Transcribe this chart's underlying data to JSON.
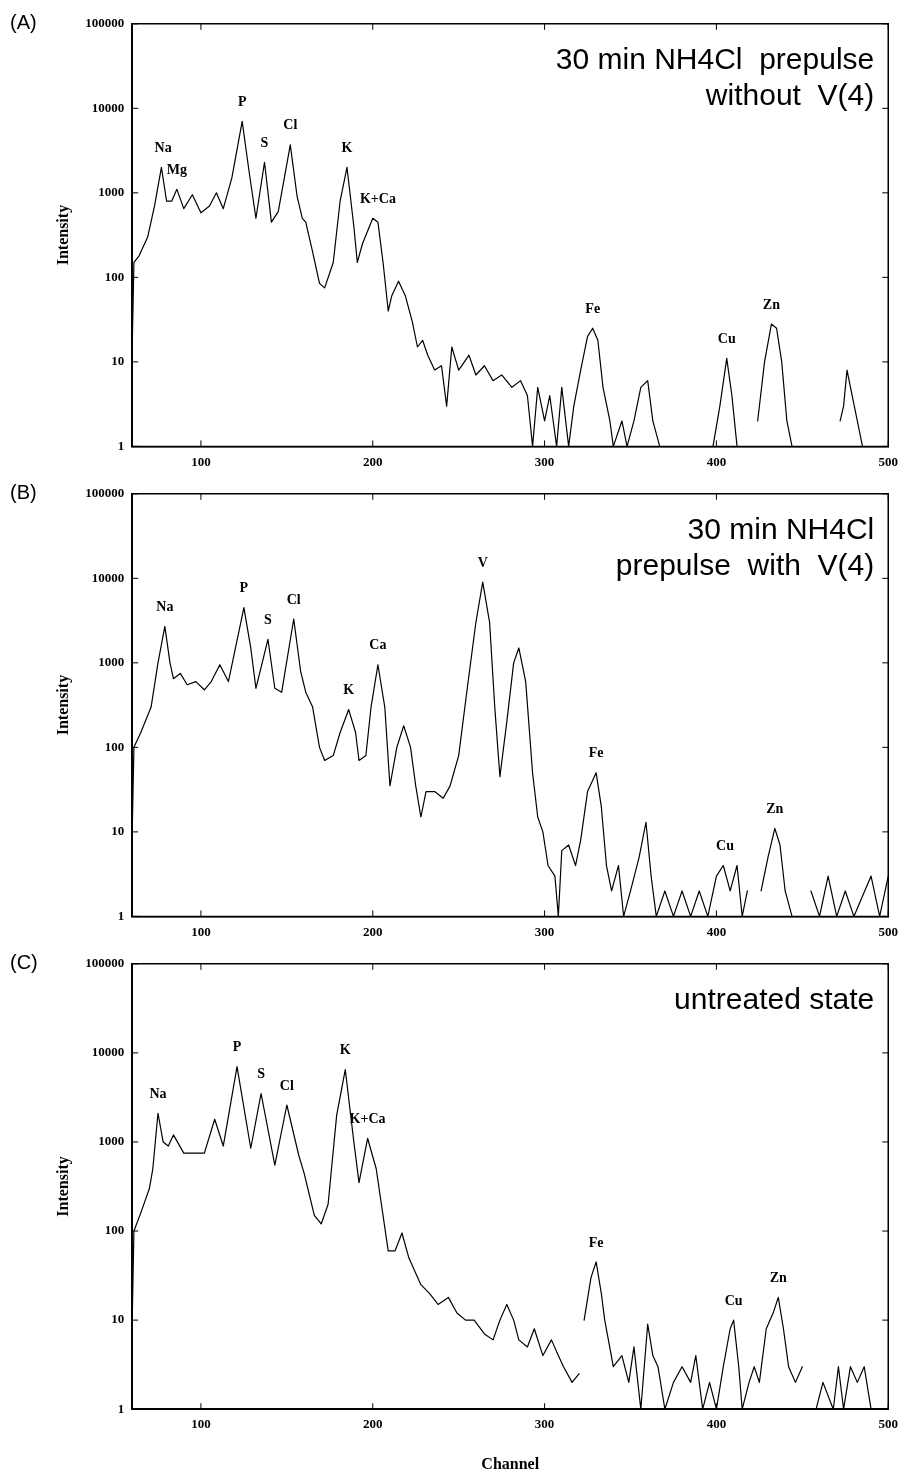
{
  "chart_data": [
    {
      "type": "line",
      "title": "(A)",
      "subtitle": "30 min NH4Cl  prepulse\nwithout  V(4)",
      "ylabel": "Intensity",
      "log": "y",
      "grid": false,
      "marker": "none",
      "line_style": "solid",
      "xlim": [
        60,
        500
      ],
      "xticks": [
        100,
        200,
        300,
        400,
        500
      ],
      "ylim": [
        1,
        100000
      ],
      "yticks": [
        1,
        10,
        100,
        1000,
        10000,
        100000
      ],
      "x": [
        60,
        61,
        64,
        69,
        73,
        77,
        80,
        83,
        86,
        90,
        95,
        100,
        105,
        109,
        113,
        118,
        124,
        128,
        132,
        137,
        141,
        145,
        152,
        156,
        159,
        161,
        165,
        169,
        172,
        177,
        181,
        185,
        189,
        191,
        194,
        200,
        203,
        206,
        209,
        211,
        215,
        219,
        223,
        226,
        229,
        232,
        236,
        240,
        243,
        246,
        250,
        256,
        260,
        265,
        270,
        275,
        281,
        286,
        290,
        293,
        296,
        300,
        303,
        307,
        310,
        314,
        317,
        321,
        325,
        328,
        331,
        334,
        338,
        340,
        345,
        348,
        352,
        356,
        360,
        363,
        367,
        370,
        398,
        402,
        406,
        409,
        412,
        416,
        424,
        428,
        432,
        435,
        438,
        441,
        444,
        447,
        472,
        474,
        476,
        479,
        482,
        485
      ],
      "series": [
        {
          "color": "#000000",
          "values": [
            15,
            150,
            180,
            300,
            700,
            2000,
            800,
            800,
            1100,
            650,
            950,
            580,
            700,
            1000,
            650,
            1500,
            7000,
            1800,
            500,
            2300,
            450,
            600,
            3700,
            900,
            500,
            450,
            200,
            85,
            75,
            150,
            800,
            2000,
            400,
            150,
            250,
            500,
            450,
            150,
            40,
            60,
            90,
            60,
            30,
            15,
            18,
            12,
            8,
            9,
            3,
            15,
            8,
            12,
            7,
            9,
            6,
            7,
            5,
            6,
            4,
            1,
            5,
            2,
            4,
            1,
            5,
            1,
            3,
            8,
            20,
            25,
            18,
            5,
            2,
            1,
            2,
            1,
            2,
            5,
            6,
            2,
            1,
            null,
            1,
            3,
            11,
            4,
            1,
            null,
            2,
            10,
            28,
            25,
            10,
            2,
            1,
            null,
            2,
            3,
            8,
            4,
            2,
            1
          ]
        }
      ],
      "annotations": [
        {
          "text": "Na",
          "x": 78,
          "y": 2000
        },
        {
          "text": "Mg",
          "x": 86,
          "y": 1100
        },
        {
          "text": "P",
          "x": 124,
          "y": 7000
        },
        {
          "text": "S",
          "x": 137,
          "y": 2300
        },
        {
          "text": "Cl",
          "x": 152,
          "y": 3700
        },
        {
          "text": "K",
          "x": 185,
          "y": 2000
        },
        {
          "text": "K+Ca",
          "x": 203,
          "y": 500
        },
        {
          "text": "Fe",
          "x": 328,
          "y": 25
        },
        {
          "text": "Cu",
          "x": 406,
          "y": 11
        },
        {
          "text": "Zn",
          "x": 432,
          "y": 28
        }
      ]
    },
    {
      "type": "line",
      "title": "(B)",
      "subtitle": "30 min NH4Cl\nprepulse  with  V(4)",
      "ylabel": "Intensity",
      "log": "y",
      "grid": false,
      "marker": "none",
      "line_style": "solid",
      "xlim": [
        60,
        500
      ],
      "xticks": [
        100,
        200,
        300,
        400,
        500
      ],
      "ylim": [
        1,
        100000
      ],
      "yticks": [
        1,
        10,
        100,
        1000,
        10000,
        100000
      ],
      "x": [
        60,
        61,
        65,
        71,
        75,
        79,
        82,
        84,
        88,
        92,
        97,
        102,
        106,
        111,
        116,
        125,
        129,
        132,
        139,
        143,
        147,
        154,
        158,
        161,
        165,
        169,
        172,
        177,
        181,
        186,
        190,
        192,
        196,
        199,
        203,
        207,
        210,
        214,
        218,
        222,
        225,
        228,
        231,
        236,
        241,
        245,
        250,
        255,
        260,
        264,
        268,
        271,
        274,
        278,
        282,
        285,
        289,
        293,
        296,
        299,
        302,
        306,
        308,
        310,
        314,
        318,
        321,
        325,
        330,
        333,
        336,
        339,
        343,
        346,
        350,
        355,
        359,
        362,
        365,
        370,
        375,
        380,
        385,
        390,
        395,
        400,
        404,
        408,
        412,
        415,
        418,
        421,
        426,
        430,
        434,
        437,
        440,
        444,
        447,
        455,
        460,
        465,
        470,
        475,
        480,
        490,
        495,
        500
      ],
      "series": [
        {
          "color": "#000000",
          "values": [
            10,
            100,
            150,
            300,
            1000,
            2700,
            1000,
            650,
            750,
            550,
            600,
            480,
            600,
            950,
            600,
            4500,
            1500,
            500,
            1900,
            500,
            450,
            3300,
            800,
            450,
            300,
            100,
            70,
            80,
            150,
            280,
            150,
            70,
            80,
            300,
            950,
            300,
            35,
            100,
            180,
            100,
            35,
            15,
            30,
            30,
            25,
            35,
            80,
            500,
            3000,
            9000,
            3000,
            300,
            45,
            200,
            1000,
            1500,
            600,
            50,
            15,
            10,
            4,
            3,
            1,
            6,
            7,
            4,
            8,
            30,
            50,
            20,
            4,
            2,
            4,
            1,
            2,
            5,
            13,
            3,
            1,
            2,
            1,
            2,
            1,
            2,
            1,
            3,
            4,
            2,
            4,
            1,
            2,
            null,
            2,
            5,
            11,
            7,
            2,
            1,
            null,
            2,
            1,
            3,
            1,
            2,
            1,
            3,
            1,
            3
          ]
        }
      ],
      "annotations": [
        {
          "text": "Na",
          "x": 79,
          "y": 2700
        },
        {
          "text": "P",
          "x": 125,
          "y": 4500
        },
        {
          "text": "S",
          "x": 139,
          "y": 1900
        },
        {
          "text": "Cl",
          "x": 154,
          "y": 3300
        },
        {
          "text": "K",
          "x": 186,
          "y": 280
        },
        {
          "text": "Ca",
          "x": 203,
          "y": 950
        },
        {
          "text": "V",
          "x": 264,
          "y": 9000
        },
        {
          "text": "Fe",
          "x": 330,
          "y": 50
        },
        {
          "text": "Cu",
          "x": 405,
          "y": 4
        },
        {
          "text": "Zn",
          "x": 434,
          "y": 11
        }
      ]
    },
    {
      "type": "line",
      "title": "(C)",
      "subtitle": "untreated state",
      "xlabel": "Channel",
      "ylabel": "Intensity",
      "log": "y",
      "grid": false,
      "marker": "none",
      "line_style": "solid",
      "xlim": [
        60,
        500
      ],
      "xticks": [
        100,
        200,
        300,
        400,
        500
      ],
      "ylim": [
        1,
        100000
      ],
      "yticks": [
        1,
        10,
        100,
        1000,
        10000,
        100000
      ],
      "x": [
        60,
        61,
        65,
        70,
        72,
        75,
        78,
        81,
        84,
        90,
        95,
        102,
        108,
        113,
        121,
        129,
        135,
        143,
        150,
        157,
        160,
        166,
        170,
        174,
        179,
        184,
        189,
        192,
        197,
        202,
        209,
        213,
        217,
        221,
        228,
        233,
        238,
        244,
        249,
        254,
        259,
        265,
        270,
        274,
        278,
        282,
        285,
        290,
        294,
        299,
        304,
        308,
        311,
        316,
        320,
        321,
        323,
        327,
        330,
        333,
        335,
        340,
        345,
        349,
        352,
        356,
        360,
        363,
        366,
        370,
        375,
        380,
        385,
        388,
        392,
        396,
        400,
        404,
        408,
        410,
        413,
        415,
        419,
        422,
        425,
        429,
        433,
        436,
        439,
        442,
        446,
        450,
        452,
        458,
        462,
        468,
        471,
        474,
        478,
        482,
        486,
        490
      ],
      "series": [
        {
          "color": "#000000",
          "values": [
            10,
            100,
            160,
            300,
            500,
            2100,
            1000,
            900,
            1200,
            750,
            750,
            750,
            1800,
            900,
            7000,
            850,
            3500,
            550,
            2600,
            700,
            450,
            150,
            120,
            200,
            2000,
            6500,
            1000,
            350,
            1100,
            500,
            60,
            60,
            95,
            50,
            25,
            20,
            15,
            18,
            12,
            10,
            10,
            7,
            6,
            10,
            15,
            10,
            6,
            5,
            8,
            4,
            6,
            4,
            3,
            2,
            2.5,
            null,
            10,
            30,
            45,
            20,
            10,
            3,
            4,
            2,
            5,
            1,
            9,
            4,
            3,
            1,
            2,
            3,
            2,
            4,
            1,
            2,
            1,
            3,
            8,
            10,
            3,
            1,
            2,
            3,
            2,
            8,
            12,
            18,
            8,
            3,
            2,
            3,
            null,
            1,
            2,
            1,
            3,
            1,
            3,
            2,
            3,
            1
          ]
        }
      ],
      "annotations": [
        {
          "text": "Na",
          "x": 75,
          "y": 2100
        },
        {
          "text": "P",
          "x": 121,
          "y": 7000
        },
        {
          "text": "S",
          "x": 135,
          "y": 3500
        },
        {
          "text": "Cl",
          "x": 150,
          "y": 2600
        },
        {
          "text": "K",
          "x": 184,
          "y": 6500
        },
        {
          "text": "K+Ca",
          "x": 197,
          "y": 1100
        },
        {
          "text": "Fe",
          "x": 330,
          "y": 45
        },
        {
          "text": "Cu",
          "x": 410,
          "y": 10
        },
        {
          "text": "Zn",
          "x": 436,
          "y": 18
        }
      ]
    }
  ]
}
